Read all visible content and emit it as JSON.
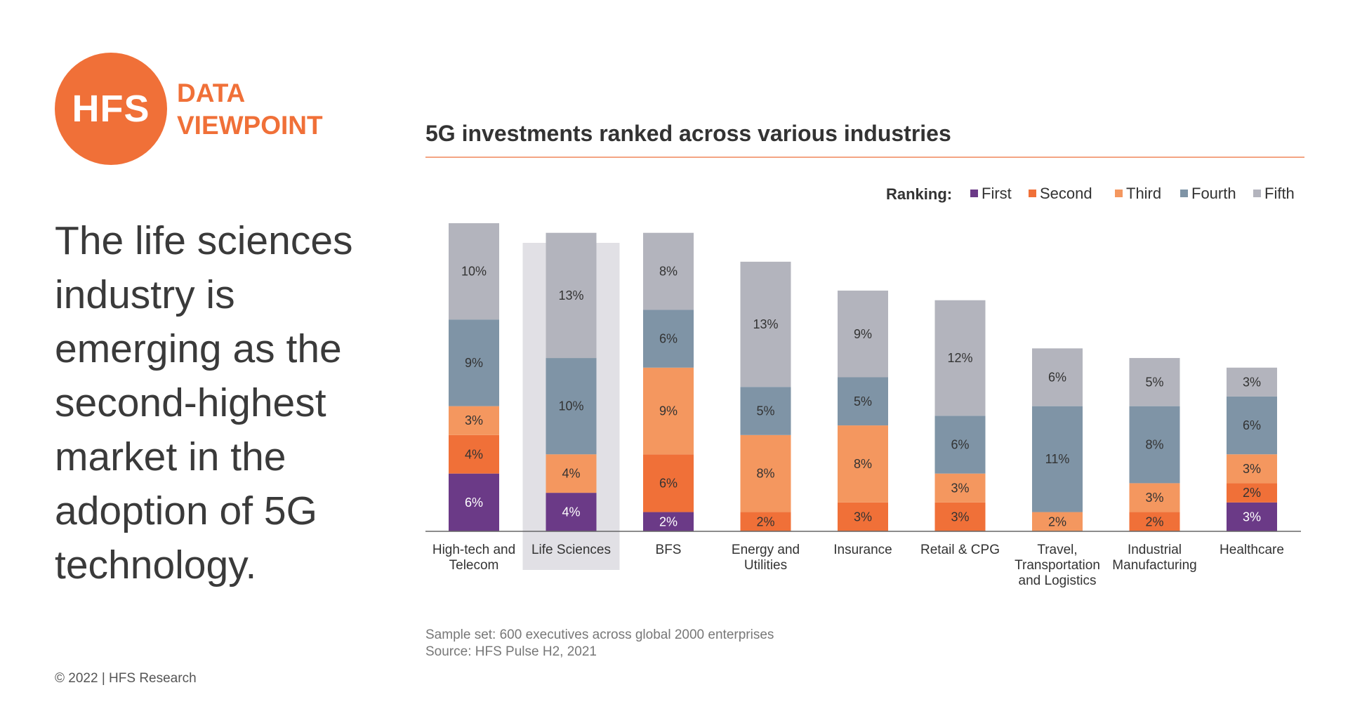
{
  "brand": {
    "logo_text": "HFS",
    "tagline_line1": "DATA",
    "tagline_line2": "VIEWPOINT",
    "color": "#F07038"
  },
  "headline": "The life sciences industry is emerging as the second-highest market in the adoption of 5G technology.",
  "footer": {
    "copyright": "© 2022 | HFS Research",
    "sample": "Sample set: 600 executives across global 2000 enterprises",
    "source": "Source: HFS Pulse H2, 2021"
  },
  "chart_data": {
    "type": "bar",
    "stacked": true,
    "title": "5G investments ranked across various industries",
    "xlabel": "",
    "ylabel": "",
    "legend_title": "Ranking:",
    "legend_position": "top-right",
    "grid": false,
    "highlighted_category": "Life Sciences",
    "categories": [
      [
        "High-tech and",
        "Telecom"
      ],
      [
        "Life Sciences"
      ],
      [
        "BFS"
      ],
      [
        "Energy and",
        "Utilities"
      ],
      [
        "Insurance"
      ],
      [
        "Retail & CPG"
      ],
      [
        "Travel,",
        "Transportation",
        "and Logistics"
      ],
      [
        "Industrial",
        "Manufacturing"
      ],
      [
        "Healthcare"
      ]
    ],
    "series": [
      {
        "name": "First",
        "color": "#6B3A87",
        "values": [
          6,
          4,
          2,
          0,
          0,
          0,
          0,
          0,
          3
        ]
      },
      {
        "name": "Second",
        "color": "#F07038",
        "values": [
          4,
          0,
          6,
          2,
          3,
          3,
          0,
          2,
          2
        ]
      },
      {
        "name": "Third",
        "color": "#F4975F",
        "values": [
          3,
          4,
          9,
          8,
          8,
          3,
          2,
          3,
          3
        ]
      },
      {
        "name": "Fourth",
        "color": "#7F94A6",
        "values": [
          9,
          10,
          6,
          5,
          5,
          6,
          11,
          8,
          6
        ]
      },
      {
        "name": "Fifth",
        "color": "#B3B4BD",
        "values": [
          10,
          13,
          8,
          13,
          9,
          12,
          6,
          5,
          3
        ]
      }
    ],
    "ylim": [
      0,
      32
    ]
  }
}
